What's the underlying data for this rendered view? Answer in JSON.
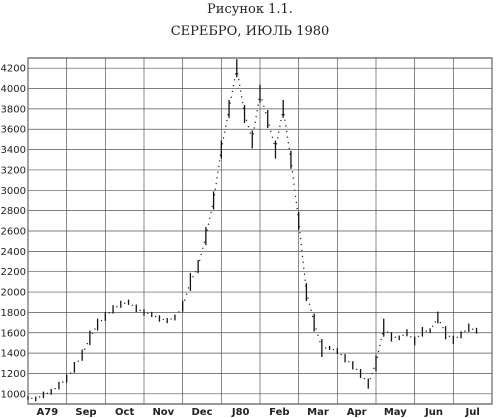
{
  "figure": {
    "caption": "Рисунок 1.1.",
    "title": "СЕРЕБРО, ИЮЛЬ 1980"
  },
  "chart_data": {
    "type": "line",
    "title": "СЕРЕБРО, ИЮЛЬ 1980",
    "xlabel": "",
    "ylabel": "",
    "ylim": [
      900,
      4300
    ],
    "yticks": [
      1000,
      1200,
      1400,
      1600,
      1800,
      2000,
      2200,
      2400,
      2600,
      2800,
      3000,
      3200,
      3400,
      3600,
      3800,
      4000,
      4200
    ],
    "xticks": [
      "A79",
      "Sep",
      "Oct",
      "Nov",
      "Dec",
      "J80",
      "Feb",
      "Mar",
      "Apr",
      "May",
      "Jun",
      "Jul"
    ],
    "grid": true,
    "series": [
      {
        "x": [
          0,
          0.2,
          0.4,
          0.6,
          0.8,
          1.0,
          1.2,
          1.4,
          1.6,
          1.8,
          2.0,
          2.2,
          2.4,
          2.6,
          2.8,
          3.0,
          3.2,
          3.4,
          3.6,
          3.8,
          4.0,
          4.2,
          4.4,
          4.6,
          4.8,
          5.0,
          5.2,
          5.4,
          5.6,
          5.8,
          6.0,
          6.2,
          6.4,
          6.6,
          6.8,
          7.0,
          7.2,
          7.4,
          7.6,
          7.8,
          8.0,
          8.2,
          8.4,
          8.6,
          8.8,
          9.0,
          9.2,
          9.4,
          9.6,
          9.8,
          10.0,
          10.2,
          10.4,
          10.6,
          10.8,
          11.0,
          11.2,
          11.4,
          11.6
        ],
        "y": [
          960,
          950,
          990,
          1020,
          1080,
          1150,
          1260,
          1380,
          1550,
          1680,
          1760,
          1830,
          1880,
          1900,
          1840,
          1800,
          1780,
          1740,
          1720,
          1750,
          1860,
          2100,
          2250,
          2550,
          2900,
          3400,
          3800,
          4200,
          3750,
          3500,
          3950,
          3700,
          3400,
          3800,
          3300,
          2700,
          2000,
          1700,
          1450,
          1450,
          1420,
          1350,
          1280,
          1200,
          1100,
          1300,
          1650,
          1560,
          1550,
          1600,
          1520,
          1610,
          1620,
          1750,
          1600,
          1530,
          1580,
          1650,
          1620
        ]
      }
    ]
  }
}
